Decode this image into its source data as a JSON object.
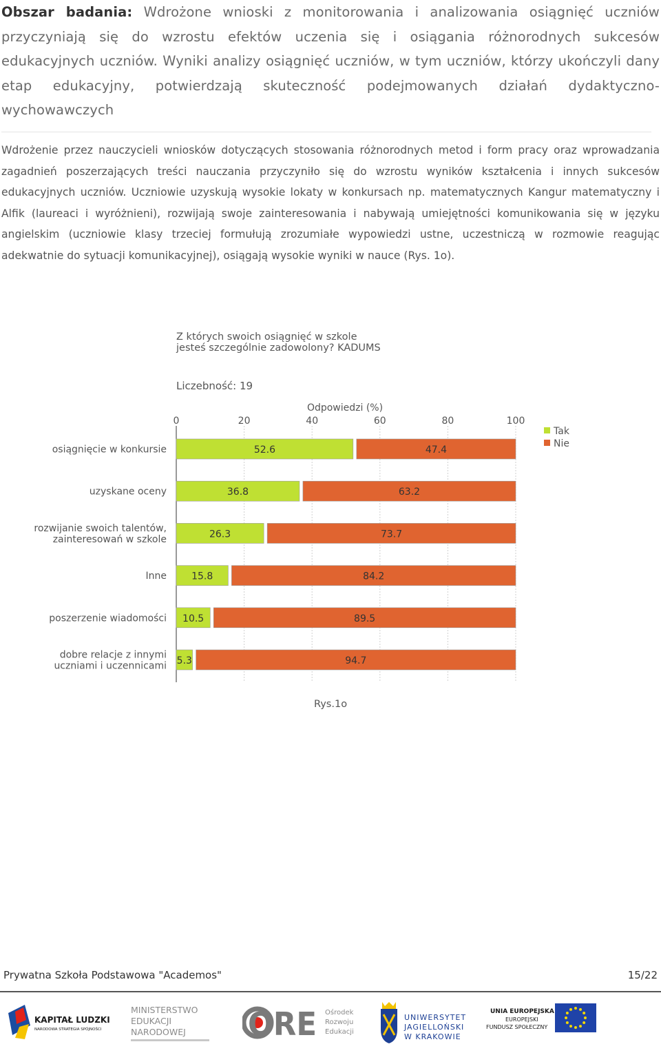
{
  "section": {
    "label": "Obszar badania:",
    "text": "Wdrożone wnioski z monitorowania i analizowania osiągnięć uczniów przyczyniają się do wzrostu efektów uczenia się i osiągania różnorodnych sukcesów edukacyjnych uczniów. Wyniki analizy osiągnięć uczniów, w tym uczniów, którzy ukończyli dany etap edukacyjny, potwierdzają skuteczność podejmowanych działań dydaktyczno-wychowawczych"
  },
  "paragraph": "Wdrożenie przez nauczycieli wniosków dotyczących stosowania różnorodnych metod i form pracy oraz wprowadzania zagadnień poszerzających treści nauczania przyczyniło się do wzrostu wyników kształcenia i innych sukcesów edukacyjnych uczniów. Uczniowie uzyskują wysokie lokaty w konkursach np. matematycznych Kangur matematyczny i Alfik (laureaci i wyróżnieni), rozwijają swoje zainteresowania i nabywają umiejętności komunikowania się w języku angielskim (uczniowie klasy trzeciej formułują zrozumiałe wypowiedzi ustne, uczestniczą w rozmowie reagując adekwatnie do sytuacji komunikacyjnej), osiągają wysokie wyniki w nauce (Rys. 1o).",
  "chart_data": {
    "type": "bar",
    "orientation": "horizontal",
    "stacked": true,
    "title": "Z których swoich osiągnięć w szkole jesteś szczególnie zadowolony? KADUMS",
    "sample_size_label": "Liczebność: 19",
    "xlabel": "Odpowiedzi (%)",
    "xlim": [
      0,
      100
    ],
    "x_ticks": [
      "0",
      "20",
      "40",
      "60",
      "80",
      "100"
    ],
    "grid": true,
    "legend_position": "top-right",
    "categories": [
      [
        "osiągnięcie w konkursie"
      ],
      [
        "uzyskane oceny"
      ],
      [
        "rozwijanie swoich talentów,",
        "zainteresowań w szkole"
      ],
      [
        "Inne"
      ],
      [
        "poszerzenie wiadomości"
      ],
      [
        "dobre relacje z innymi",
        "uczniami i uczennicami"
      ]
    ],
    "series": [
      {
        "name": "Tak",
        "color": "#bfe033",
        "values": [
          52.6,
          36.8,
          26.3,
          15.8,
          10.5,
          5.3
        ]
      },
      {
        "name": "Nie",
        "color": "#e06430",
        "values": [
          47.4,
          63.2,
          73.7,
          84.2,
          89.5,
          94.7
        ]
      }
    ]
  },
  "caption": "Rys.1o",
  "footer": {
    "school": "Prywatna Szkoła Podstawowa \"Academos\"",
    "page": "15/22"
  },
  "logos": {
    "kapital": {
      "line1": "KAPITAŁ LUDZKI",
      "line2": "NARODOWA STRATEGIA SPÓJNOŚCI"
    },
    "ministry": {
      "line1": "MINISTERSTWO",
      "line2": "EDUKACJI",
      "line3": "NARODOWEJ"
    },
    "ore": {
      "mark": "ORE",
      "line1": "Ośrodek",
      "line2": "Rozwoju",
      "line3": "Edukacji"
    },
    "uj": {
      "line1": "UNIWERSYTET",
      "line2": "JAGIELLOŃSKI",
      "line3": "W KRAKOWIE"
    },
    "ue": {
      "line1": "UNIA EUROPEJSKA",
      "line2": "EUROPEJSKI",
      "line3": "FUNDUSZ SPOŁECZNY"
    }
  }
}
